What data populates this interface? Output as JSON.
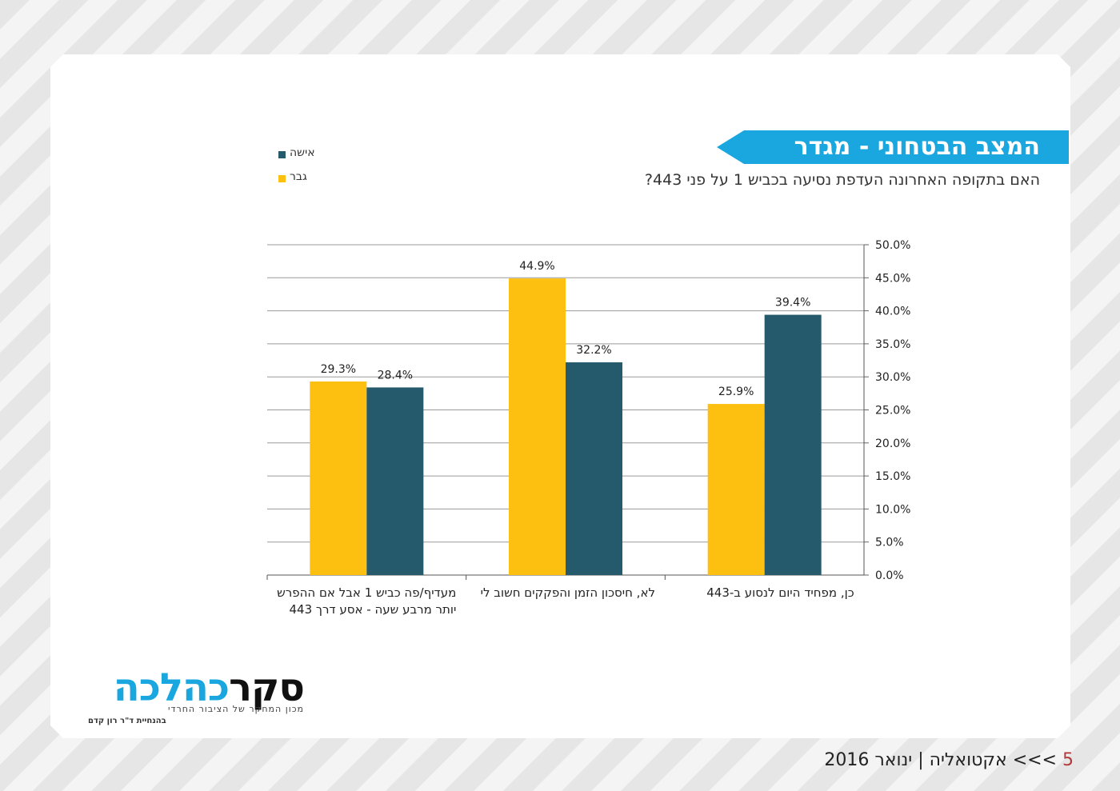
{
  "title": "המצב הבטחוני - מגדר",
  "subtitle": "האם בתקופה האחרונה העדפת נסיעה בכביש 1 על פני 443?",
  "colors": {
    "banner": "#1aa7e0",
    "woman": "#245a6b",
    "man": "#fdc010",
    "page_number": "#b23a3a"
  },
  "chart_data": {
    "type": "bar",
    "title": "",
    "xlabel": "",
    "ylabel": "",
    "ylim": [
      0,
      50
    ],
    "y_ticks": [
      "0.0%",
      "5.0%",
      "10.0%",
      "15.0%",
      "20.0%",
      "25.0%",
      "30.0%",
      "35.0%",
      "40.0%",
      "45.0%",
      "50.0%"
    ],
    "y_axis_side": "right",
    "grid": true,
    "legend_position": "top-left",
    "categories": [
      [
        "כן, מפחיד היום לנסוע ב-443"
      ],
      [
        "לא, חיסכון הזמן והפקקים חשוב לי"
      ],
      [
        "מעדיף/פה כביש 1 אבל אם ההפרש",
        "יותר מרבע שעה - אסע דרך 443"
      ]
    ],
    "series": [
      {
        "name": "אישה",
        "color": "#245a6b",
        "values": [
          39.4,
          32.2,
          28.4
        ],
        "labels": [
          "39.4%",
          "32.2%",
          "28.4%"
        ]
      },
      {
        "name": "גבר",
        "color": "#fdc010",
        "values": [
          25.9,
          44.9,
          29.3
        ],
        "labels": [
          "25.9%",
          "44.9%",
          "29.3%"
        ]
      }
    ]
  },
  "logo": {
    "part1": "סקר",
    "part2": "כהלכה",
    "tagline": "מכון המחקר של הציבור החרדי",
    "director": "בהנחיית ד\"ר רון קדם"
  },
  "footer": {
    "page": "5",
    "arrows": ">>>",
    "section": "אקטואליה",
    "separator": "|",
    "date": "ינואר 2016"
  }
}
